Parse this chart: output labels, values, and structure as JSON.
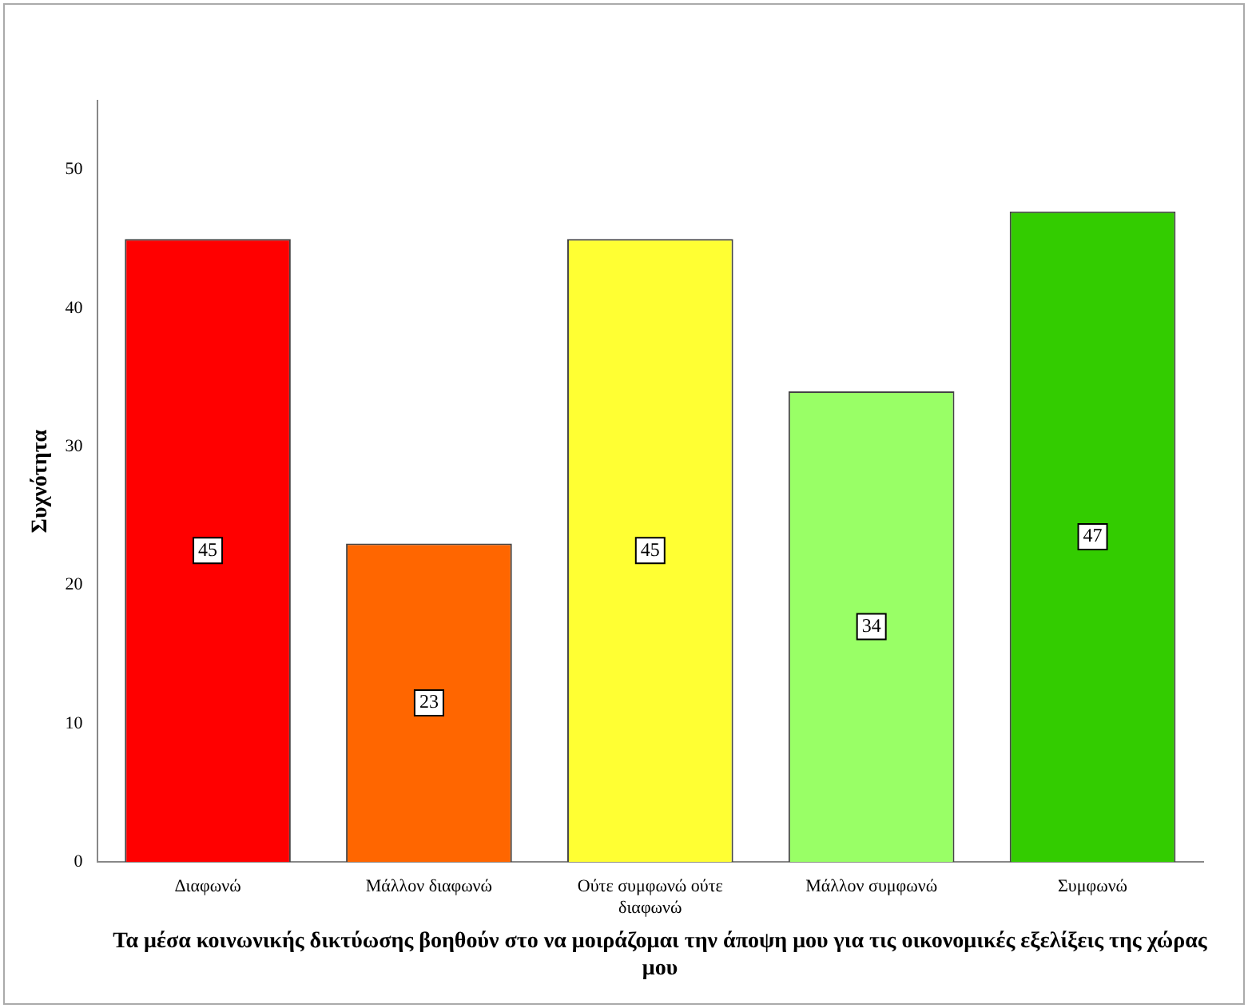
{
  "chart_data": {
    "type": "bar",
    "categories": [
      "Διαφωνώ",
      "Μάλλον διαφωνώ",
      "Ούτε συμφωνώ ούτε διαφωνώ",
      "Μάλλον συμφωνώ",
      "Συμφωνώ"
    ],
    "values": [
      45,
      23,
      45,
      34,
      47
    ],
    "colors": [
      "#ff0000",
      "#ff6600",
      "#ffff33",
      "#99ff66",
      "#33cc00"
    ],
    "ylim": [
      0,
      55
    ],
    "yticks": [
      0,
      10,
      20,
      30,
      40,
      50
    ],
    "xlabel": "Τα μέσα κοινωνικής δικτύωσης βοηθούν στο να μοιράζομαι την άποψη μου για τις οικονομικές εξελίξεις της χώρας μου",
    "ylabel": "Συχνότητα",
    "data_labels": true,
    "grid": false,
    "legend": false
  }
}
